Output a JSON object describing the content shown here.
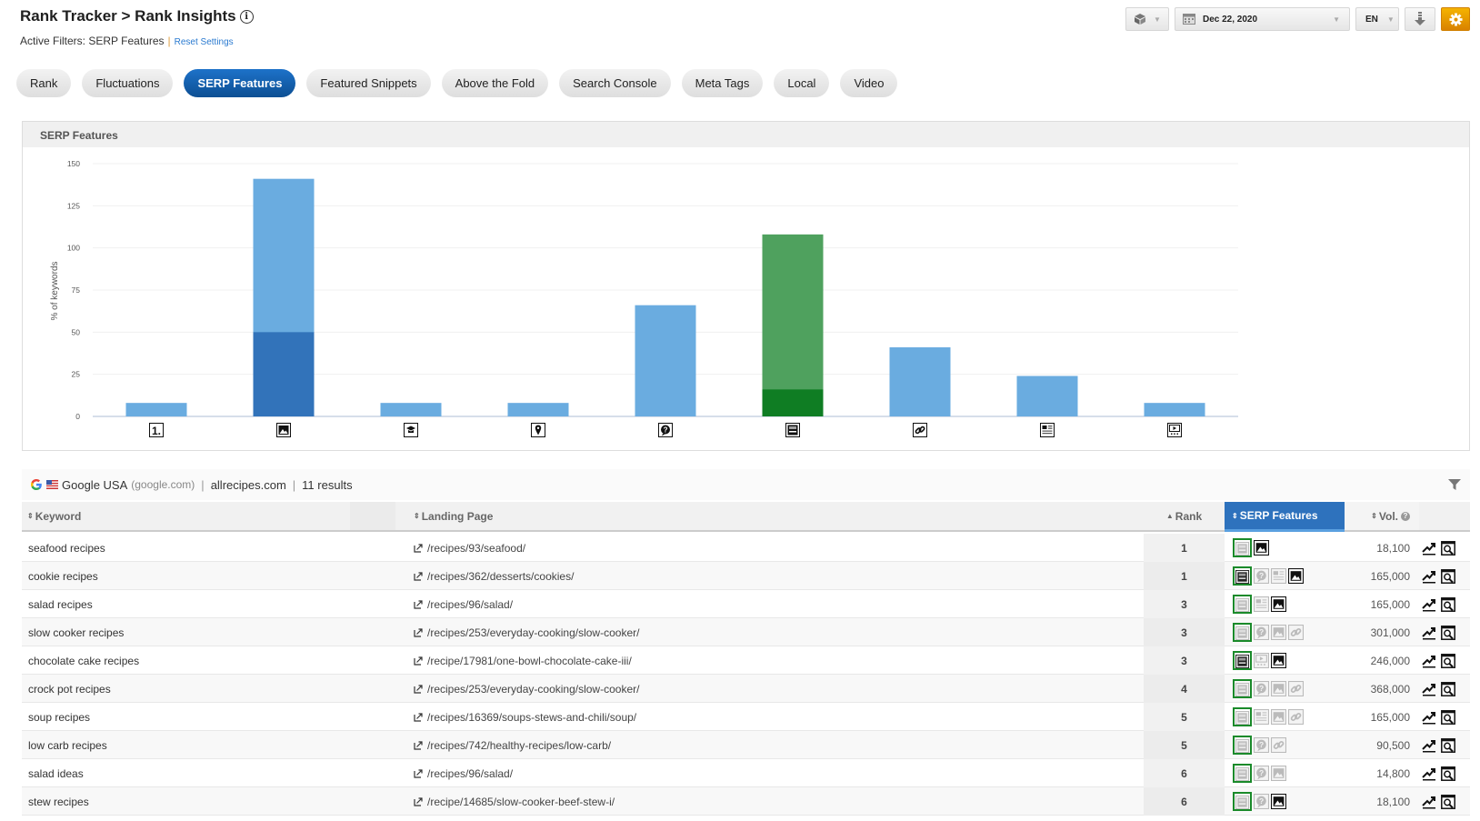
{
  "header": {
    "title": "Rank Tracker > Rank Insights",
    "active_filters_label": "Active Filters: SERP Features",
    "reset_link": "Reset Settings",
    "date": "Dec 22, 2020",
    "language": "EN",
    "accent_color": "#f0a000"
  },
  "tabs": [
    {
      "label": "Rank",
      "active": false
    },
    {
      "label": "Fluctuations",
      "active": false
    },
    {
      "label": "SERP Features",
      "active": true
    },
    {
      "label": "Featured Snippets",
      "active": false
    },
    {
      "label": "Above the Fold",
      "active": false
    },
    {
      "label": "Search Console",
      "active": false
    },
    {
      "label": "Meta Tags",
      "active": false
    },
    {
      "label": "Local",
      "active": false
    },
    {
      "label": "Video",
      "active": false
    }
  ],
  "chart_panel": {
    "title": "SERP Features"
  },
  "chart_data": {
    "type": "bar",
    "stacked": true,
    "ylabel": "% of keywords",
    "ylim": [
      0,
      150
    ],
    "yticks": [
      0,
      25,
      50,
      75,
      100,
      125,
      150
    ],
    "grid": true,
    "categories": [
      "numbered-list-icon",
      "image-icon",
      "knowledge-panel-icon",
      "local-pin-icon",
      "people-also-ask-icon",
      "featured-snippet-icon",
      "sitelinks-icon",
      "news-icon",
      "video-icon"
    ],
    "totals": [
      8,
      141,
      8,
      8,
      66,
      108,
      41,
      24,
      8
    ],
    "owned": [
      0,
      50,
      0,
      0,
      0,
      16,
      0,
      0,
      0
    ],
    "colors": {
      "total": "#6aace0",
      "owned_blue": "#3273ba",
      "highlight_total": "#4fa15e",
      "highlight_owned": "#0f7d23"
    },
    "highlight_category": "featured-snippet-icon"
  },
  "table": {
    "engine": "Google USA",
    "engine_domain": "(google.com)",
    "site": "allrecipes.com",
    "results": "11 results",
    "columns": {
      "keyword": "Keyword",
      "landing": "Landing Page",
      "rank": "Rank",
      "serp": "SERP Features",
      "vol": "Vol."
    },
    "rows": [
      {
        "keyword": "seafood recipes",
        "landing": "/recipes/93/seafood/",
        "rank": "1",
        "vol": "18,100",
        "features": [
          [
            "snippet",
            "owned-light"
          ],
          [
            "image",
            "present"
          ]
        ]
      },
      {
        "keyword": "cookie recipes",
        "landing": "/recipes/362/desserts/cookies/",
        "rank": "1",
        "vol": "165,000",
        "features": [
          [
            "snippet",
            "owned-dark"
          ],
          [
            "paa",
            "absent"
          ],
          [
            "news",
            "absent"
          ],
          [
            "image",
            "present"
          ]
        ]
      },
      {
        "keyword": "salad recipes",
        "landing": "/recipes/96/salad/",
        "rank": "3",
        "vol": "165,000",
        "features": [
          [
            "snippet",
            "owned-light"
          ],
          [
            "news",
            "absent"
          ],
          [
            "image",
            "present"
          ]
        ]
      },
      {
        "keyword": "slow cooker recipes",
        "landing": "/recipes/253/everyday-cooking/slow-cooker/",
        "rank": "3",
        "vol": "301,000",
        "features": [
          [
            "snippet",
            "owned-light"
          ],
          [
            "paa",
            "absent"
          ],
          [
            "image",
            "absent"
          ],
          [
            "link",
            "absent"
          ]
        ]
      },
      {
        "keyword": "chocolate cake recipes",
        "landing": "/recipe/17981/one-bowl-chocolate-cake-iii/",
        "rank": "3",
        "vol": "246,000",
        "features": [
          [
            "snippet",
            "owned-dark"
          ],
          [
            "video",
            "absent"
          ],
          [
            "image",
            "present"
          ]
        ]
      },
      {
        "keyword": "crock pot recipes",
        "landing": "/recipes/253/everyday-cooking/slow-cooker/",
        "rank": "4",
        "vol": "368,000",
        "features": [
          [
            "snippet",
            "owned-light"
          ],
          [
            "paa",
            "absent"
          ],
          [
            "image",
            "absent"
          ],
          [
            "link",
            "absent"
          ]
        ]
      },
      {
        "keyword": "soup recipes",
        "landing": "/recipes/16369/soups-stews-and-chili/soup/",
        "rank": "5",
        "vol": "165,000",
        "features": [
          [
            "snippet",
            "owned-light"
          ],
          [
            "news",
            "absent"
          ],
          [
            "image",
            "absent"
          ],
          [
            "link",
            "absent"
          ]
        ]
      },
      {
        "keyword": "low carb recipes",
        "landing": "/recipes/742/healthy-recipes/low-carb/",
        "rank": "5",
        "vol": "90,500",
        "features": [
          [
            "snippet",
            "owned-light"
          ],
          [
            "paa",
            "absent"
          ],
          [
            "link",
            "absent"
          ]
        ]
      },
      {
        "keyword": "salad ideas",
        "landing": "/recipes/96/salad/",
        "rank": "6",
        "vol": "14,800",
        "features": [
          [
            "snippet",
            "owned-light"
          ],
          [
            "paa",
            "absent"
          ],
          [
            "image",
            "absent"
          ]
        ]
      },
      {
        "keyword": "stew recipes",
        "landing": "/recipe/14685/slow-cooker-beef-stew-i/",
        "rank": "6",
        "vol": "18,100",
        "features": [
          [
            "snippet",
            "owned-light"
          ],
          [
            "paa",
            "absent"
          ],
          [
            "image",
            "present"
          ]
        ]
      }
    ]
  }
}
